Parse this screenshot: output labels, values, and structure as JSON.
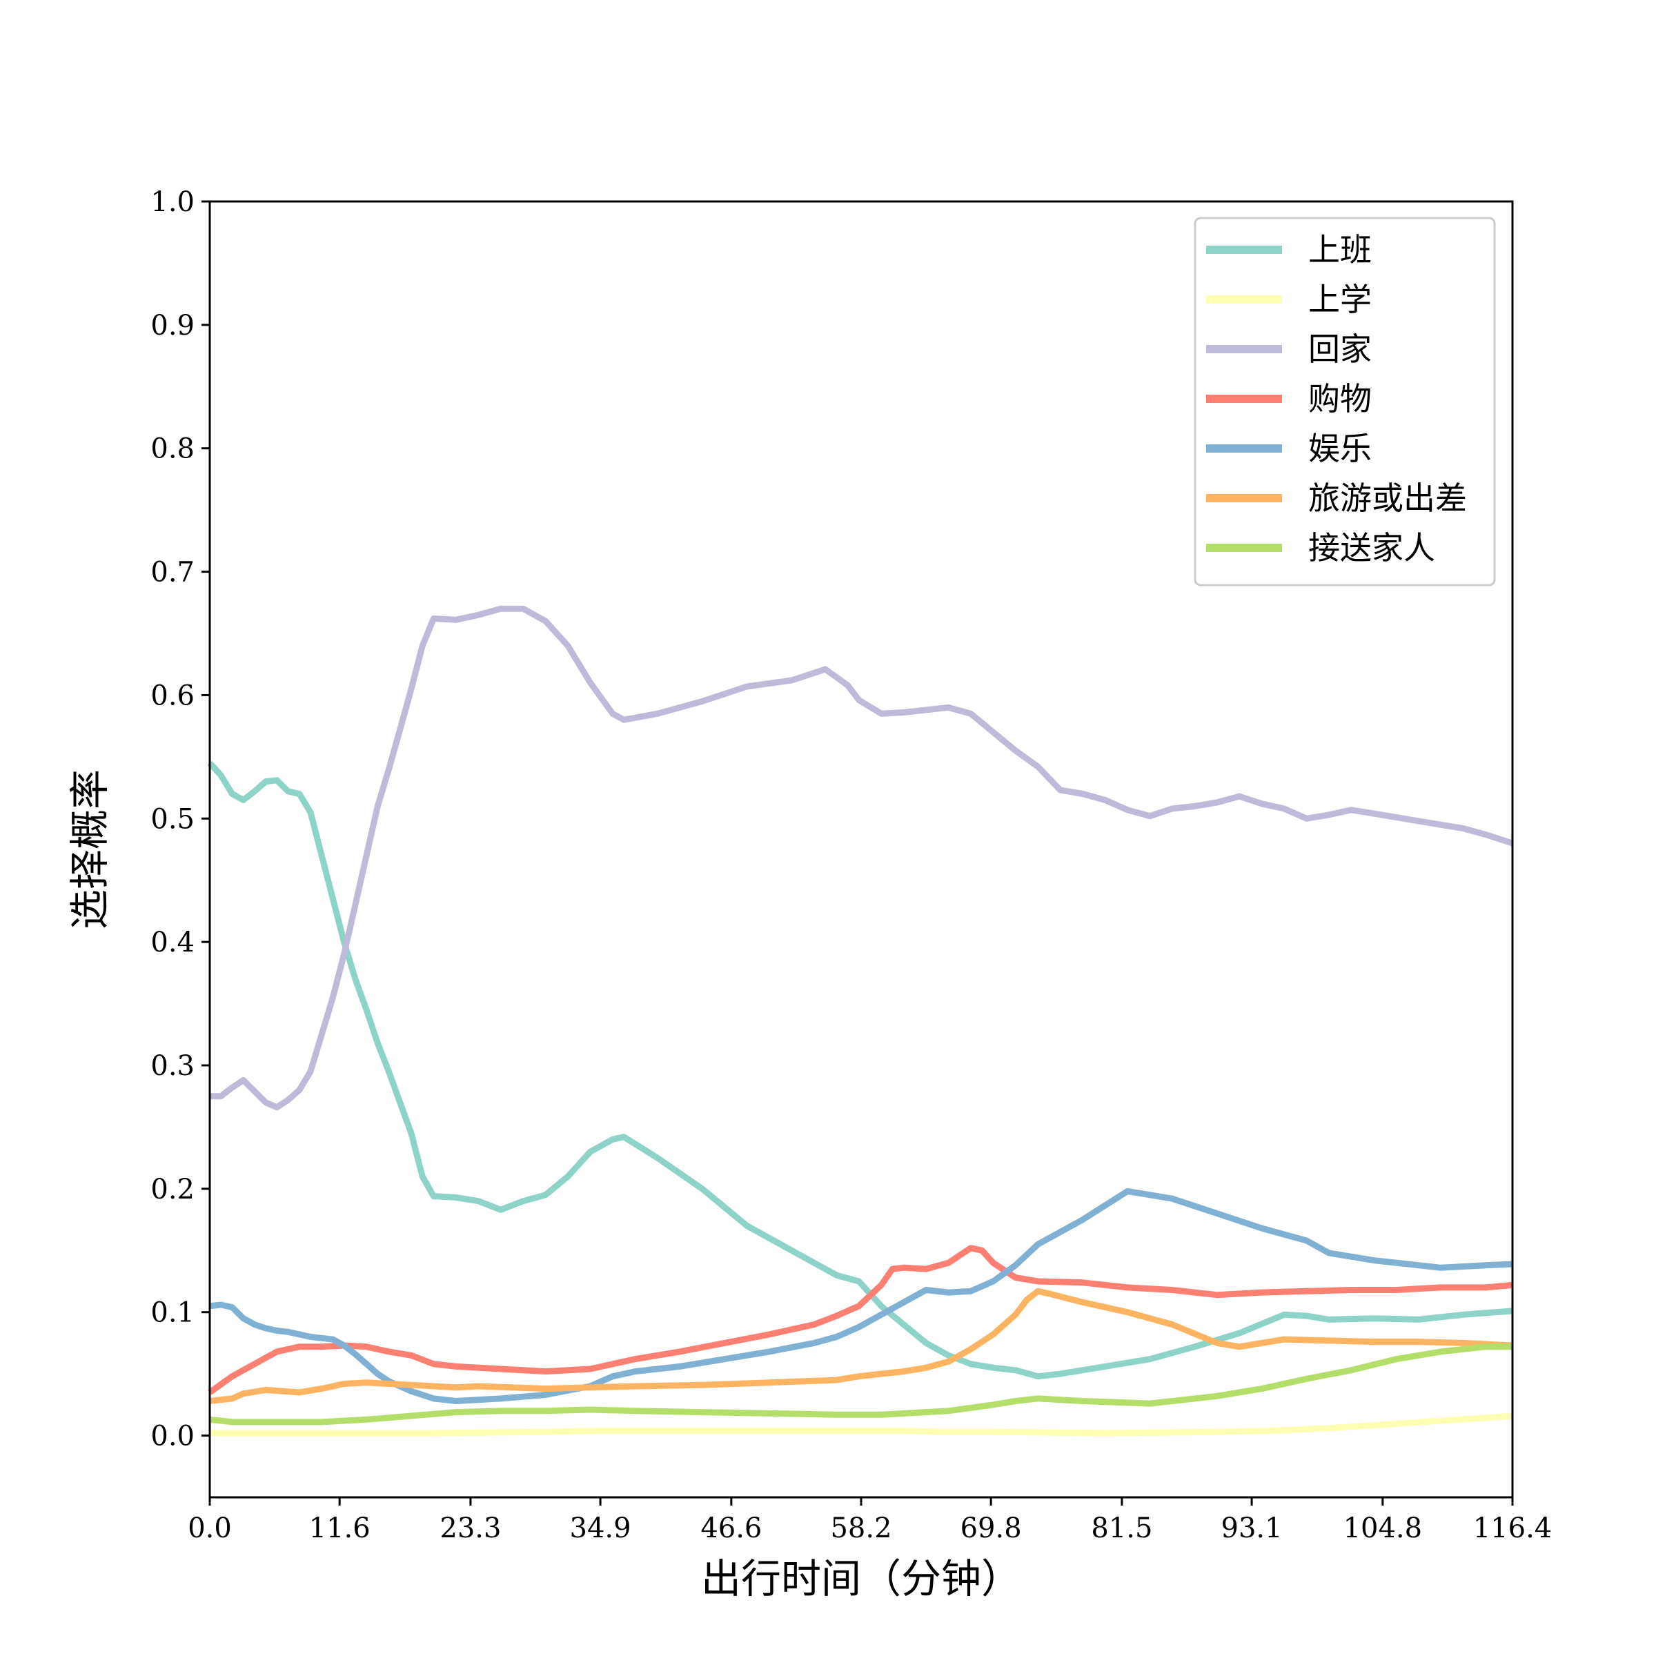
{
  "chart_data": {
    "type": "line",
    "title": "",
    "xlabel": "出行时间（分钟）",
    "ylabel": "选择概率",
    "xlim": [
      0,
      116.4
    ],
    "ylim": [
      -0.05,
      1.0
    ],
    "x_ticks": [
      "0.0",
      "11.6",
      "23.3",
      "34.9",
      "46.6",
      "58.2",
      "69.8",
      "81.5",
      "93.1",
      "104.8",
      "116.4"
    ],
    "y_ticks": [
      "0.0",
      "0.1",
      "0.2",
      "0.3",
      "0.4",
      "0.5",
      "0.6",
      "0.7",
      "0.8",
      "0.9",
      "1.0"
    ],
    "grid": false,
    "legend_position": "top-right",
    "series": [
      {
        "name": "上班",
        "color": "#8dd3c7",
        "points": [
          [
            0,
            0.545
          ],
          [
            1,
            0.535
          ],
          [
            2,
            0.52
          ],
          [
            3,
            0.515
          ],
          [
            4,
            0.522
          ],
          [
            5,
            0.53
          ],
          [
            6,
            0.531
          ],
          [
            7,
            0.522
          ],
          [
            8,
            0.52
          ],
          [
            9,
            0.505
          ],
          [
            10,
            0.47
          ],
          [
            11,
            0.435
          ],
          [
            12,
            0.4
          ],
          [
            13,
            0.37
          ],
          [
            14,
            0.345
          ],
          [
            15,
            0.318
          ],
          [
            16,
            0.295
          ],
          [
            17,
            0.27
          ],
          [
            18,
            0.245
          ],
          [
            19,
            0.21
          ],
          [
            20,
            0.194
          ],
          [
            22,
            0.193
          ],
          [
            24,
            0.19
          ],
          [
            26,
            0.183
          ],
          [
            28,
            0.19
          ],
          [
            30,
            0.195
          ],
          [
            32,
            0.21
          ],
          [
            34,
            0.23
          ],
          [
            36,
            0.24
          ],
          [
            37,
            0.242
          ],
          [
            40,
            0.225
          ],
          [
            44,
            0.2
          ],
          [
            48,
            0.17
          ],
          [
            52,
            0.15
          ],
          [
            56,
            0.13
          ],
          [
            58,
            0.125
          ],
          [
            60,
            0.105
          ],
          [
            62,
            0.09
          ],
          [
            64,
            0.075
          ],
          [
            66,
            0.065
          ],
          [
            68,
            0.058
          ],
          [
            70,
            0.055
          ],
          [
            72,
            0.053
          ],
          [
            74,
            0.048
          ],
          [
            76,
            0.05
          ],
          [
            80,
            0.056
          ],
          [
            84,
            0.062
          ],
          [
            88,
            0.072
          ],
          [
            92,
            0.083
          ],
          [
            96,
            0.098
          ],
          [
            98,
            0.097
          ],
          [
            100,
            0.094
          ],
          [
            104,
            0.095
          ],
          [
            108,
            0.094
          ],
          [
            112,
            0.098
          ],
          [
            116.4,
            0.101
          ]
        ]
      },
      {
        "name": "上学",
        "color": "#ffffb3",
        "points": [
          [
            0,
            0.002
          ],
          [
            10,
            0.002
          ],
          [
            20,
            0.002
          ],
          [
            30,
            0.003
          ],
          [
            35,
            0.004
          ],
          [
            40,
            0.004
          ],
          [
            50,
            0.004
          ],
          [
            58,
            0.004
          ],
          [
            62,
            0.004
          ],
          [
            65,
            0.003
          ],
          [
            70,
            0.003
          ],
          [
            80,
            0.002
          ],
          [
            90,
            0.003
          ],
          [
            95,
            0.004
          ],
          [
            100,
            0.006
          ],
          [
            105,
            0.009
          ],
          [
            110,
            0.012
          ],
          [
            116.4,
            0.016
          ]
        ]
      },
      {
        "name": "回家",
        "color": "#bebada",
        "points": [
          [
            0,
            0.275
          ],
          [
            1,
            0.275
          ],
          [
            2,
            0.282
          ],
          [
            3,
            0.288
          ],
          [
            4,
            0.279
          ],
          [
            5,
            0.27
          ],
          [
            6,
            0.266
          ],
          [
            7,
            0.272
          ],
          [
            8,
            0.28
          ],
          [
            9,
            0.295
          ],
          [
            10,
            0.325
          ],
          [
            11,
            0.355
          ],
          [
            12,
            0.39
          ],
          [
            13,
            0.43
          ],
          [
            14,
            0.47
          ],
          [
            15,
            0.51
          ],
          [
            16,
            0.54
          ],
          [
            17,
            0.572
          ],
          [
            18,
            0.605
          ],
          [
            19,
            0.64
          ],
          [
            20,
            0.662
          ],
          [
            22,
            0.661
          ],
          [
            24,
            0.665
          ],
          [
            26,
            0.67
          ],
          [
            28,
            0.67
          ],
          [
            30,
            0.66
          ],
          [
            32,
            0.64
          ],
          [
            34,
            0.61
          ],
          [
            36,
            0.585
          ],
          [
            37,
            0.58
          ],
          [
            40,
            0.585
          ],
          [
            44,
            0.595
          ],
          [
            48,
            0.607
          ],
          [
            52,
            0.612
          ],
          [
            55,
            0.621
          ],
          [
            57,
            0.608
          ],
          [
            58,
            0.596
          ],
          [
            60,
            0.585
          ],
          [
            62,
            0.586
          ],
          [
            64,
            0.588
          ],
          [
            66,
            0.59
          ],
          [
            68,
            0.585
          ],
          [
            70,
            0.57
          ],
          [
            72,
            0.555
          ],
          [
            74,
            0.542
          ],
          [
            76,
            0.523
          ],
          [
            78,
            0.52
          ],
          [
            80,
            0.515
          ],
          [
            82,
            0.507
          ],
          [
            84,
            0.502
          ],
          [
            86,
            0.508
          ],
          [
            88,
            0.51
          ],
          [
            90,
            0.513
          ],
          [
            92,
            0.518
          ],
          [
            94,
            0.512
          ],
          [
            96,
            0.508
          ],
          [
            98,
            0.5
          ],
          [
            100,
            0.503
          ],
          [
            102,
            0.507
          ],
          [
            104,
            0.504
          ],
          [
            108,
            0.498
          ],
          [
            112,
            0.492
          ],
          [
            114,
            0.487
          ],
          [
            116.4,
            0.48
          ]
        ]
      },
      {
        "name": "购物",
        "color": "#fb8072",
        "points": [
          [
            0,
            0.035
          ],
          [
            2,
            0.048
          ],
          [
            4,
            0.058
          ],
          [
            6,
            0.068
          ],
          [
            8,
            0.072
          ],
          [
            10,
            0.072
          ],
          [
            12,
            0.073
          ],
          [
            14,
            0.072
          ],
          [
            16,
            0.068
          ],
          [
            18,
            0.065
          ],
          [
            20,
            0.058
          ],
          [
            22,
            0.056
          ],
          [
            26,
            0.054
          ],
          [
            30,
            0.052
          ],
          [
            34,
            0.054
          ],
          [
            38,
            0.062
          ],
          [
            42,
            0.068
          ],
          [
            46,
            0.075
          ],
          [
            50,
            0.082
          ],
          [
            54,
            0.09
          ],
          [
            56,
            0.097
          ],
          [
            58,
            0.105
          ],
          [
            60,
            0.122
          ],
          [
            61,
            0.135
          ],
          [
            62,
            0.136
          ],
          [
            64,
            0.135
          ],
          [
            66,
            0.14
          ],
          [
            68,
            0.152
          ],
          [
            69,
            0.15
          ],
          [
            70,
            0.14
          ],
          [
            72,
            0.128
          ],
          [
            74,
            0.125
          ],
          [
            78,
            0.124
          ],
          [
            82,
            0.12
          ],
          [
            86,
            0.118
          ],
          [
            90,
            0.114
          ],
          [
            94,
            0.116
          ],
          [
            98,
            0.117
          ],
          [
            102,
            0.118
          ],
          [
            106,
            0.118
          ],
          [
            110,
            0.12
          ],
          [
            114,
            0.12
          ],
          [
            116.4,
            0.122
          ]
        ]
      },
      {
        "name": "娱乐",
        "color": "#80b1d3",
        "points": [
          [
            0,
            0.105
          ],
          [
            1,
            0.106
          ],
          [
            2,
            0.104
          ],
          [
            3,
            0.095
          ],
          [
            4,
            0.09
          ],
          [
            5,
            0.087
          ],
          [
            6,
            0.085
          ],
          [
            7,
            0.084
          ],
          [
            8,
            0.082
          ],
          [
            9,
            0.08
          ],
          [
            10,
            0.079
          ],
          [
            11,
            0.078
          ],
          [
            12,
            0.073
          ],
          [
            13,
            0.066
          ],
          [
            14,
            0.058
          ],
          [
            15,
            0.05
          ],
          [
            16,
            0.044
          ],
          [
            18,
            0.036
          ],
          [
            20,
            0.03
          ],
          [
            22,
            0.028
          ],
          [
            26,
            0.03
          ],
          [
            30,
            0.033
          ],
          [
            34,
            0.04
          ],
          [
            36,
            0.048
          ],
          [
            38,
            0.052
          ],
          [
            42,
            0.056
          ],
          [
            46,
            0.062
          ],
          [
            50,
            0.068
          ],
          [
            54,
            0.075
          ],
          [
            56,
            0.08
          ],
          [
            58,
            0.088
          ],
          [
            60,
            0.098
          ],
          [
            62,
            0.108
          ],
          [
            64,
            0.118
          ],
          [
            66,
            0.116
          ],
          [
            68,
            0.117
          ],
          [
            70,
            0.125
          ],
          [
            72,
            0.138
          ],
          [
            74,
            0.155
          ],
          [
            78,
            0.175
          ],
          [
            82,
            0.198
          ],
          [
            86,
            0.192
          ],
          [
            90,
            0.18
          ],
          [
            94,
            0.168
          ],
          [
            98,
            0.158
          ],
          [
            100,
            0.148
          ],
          [
            104,
            0.142
          ],
          [
            108,
            0.138
          ],
          [
            110,
            0.136
          ],
          [
            114,
            0.138
          ],
          [
            116.4,
            0.139
          ]
        ]
      },
      {
        "name": "旅游或出差",
        "color": "#fdb462",
        "points": [
          [
            0,
            0.028
          ],
          [
            2,
            0.03
          ],
          [
            3,
            0.034
          ],
          [
            5,
            0.037
          ],
          [
            8,
            0.035
          ],
          [
            10,
            0.038
          ],
          [
            12,
            0.042
          ],
          [
            14,
            0.043
          ],
          [
            16,
            0.042
          ],
          [
            20,
            0.04
          ],
          [
            22,
            0.039
          ],
          [
            24,
            0.04
          ],
          [
            30,
            0.038
          ],
          [
            34,
            0.039
          ],
          [
            38,
            0.04
          ],
          [
            44,
            0.041
          ],
          [
            50,
            0.043
          ],
          [
            56,
            0.045
          ],
          [
            58,
            0.048
          ],
          [
            60,
            0.05
          ],
          [
            62,
            0.052
          ],
          [
            64,
            0.055
          ],
          [
            66,
            0.06
          ],
          [
            68,
            0.07
          ],
          [
            70,
            0.082
          ],
          [
            72,
            0.098
          ],
          [
            73,
            0.11
          ],
          [
            74,
            0.117
          ],
          [
            75,
            0.115
          ],
          [
            78,
            0.108
          ],
          [
            82,
            0.1
          ],
          [
            86,
            0.09
          ],
          [
            90,
            0.075
          ],
          [
            92,
            0.072
          ],
          [
            96,
            0.078
          ],
          [
            100,
            0.077
          ],
          [
            104,
            0.076
          ],
          [
            108,
            0.076
          ],
          [
            112,
            0.075
          ],
          [
            116.4,
            0.073
          ]
        ]
      },
      {
        "name": "接送家人",
        "color": "#b3de69",
        "points": [
          [
            0,
            0.013
          ],
          [
            2,
            0.011
          ],
          [
            6,
            0.011
          ],
          [
            10,
            0.011
          ],
          [
            14,
            0.013
          ],
          [
            18,
            0.016
          ],
          [
            22,
            0.019
          ],
          [
            26,
            0.02
          ],
          [
            30,
            0.02
          ],
          [
            34,
            0.021
          ],
          [
            38,
            0.02
          ],
          [
            44,
            0.019
          ],
          [
            50,
            0.018
          ],
          [
            56,
            0.017
          ],
          [
            60,
            0.017
          ],
          [
            64,
            0.019
          ],
          [
            66,
            0.02
          ],
          [
            70,
            0.025
          ],
          [
            72,
            0.028
          ],
          [
            74,
            0.03
          ],
          [
            78,
            0.028
          ],
          [
            84,
            0.026
          ],
          [
            90,
            0.032
          ],
          [
            94,
            0.038
          ],
          [
            98,
            0.046
          ],
          [
            102,
            0.053
          ],
          [
            106,
            0.062
          ],
          [
            110,
            0.068
          ],
          [
            114,
            0.072
          ],
          [
            116.4,
            0.072
          ]
        ]
      }
    ]
  }
}
